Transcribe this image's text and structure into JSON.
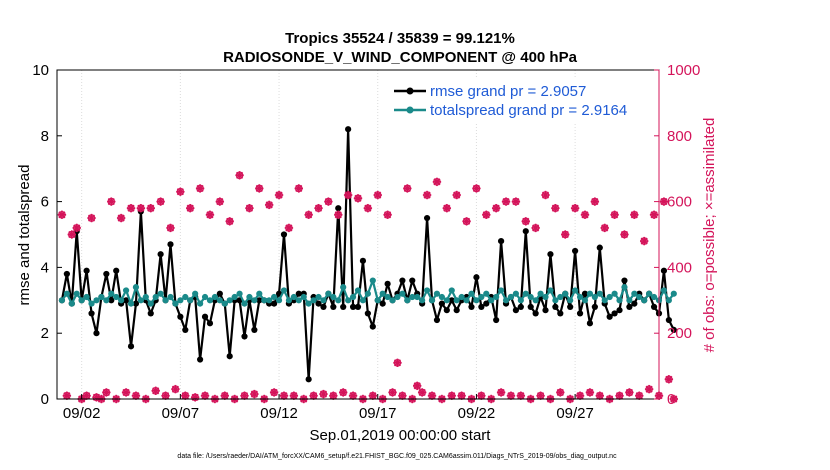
{
  "chart_data": {
    "type": "line",
    "title": "Tropics 35524 / 35839 = 99.121%",
    "subtitle": "RADIOSONDE_V_WIND_COMPONENT @ 400 hPa",
    "xlabel": "Sep.01,2019 00:00:00 start",
    "ylabel_left": "rmse and totalspread",
    "ylabel_right": "# of obs: o=possible; ×=assimilated",
    "ylim_left": [
      0,
      10
    ],
    "ylim_right": [
      0,
      1000
    ],
    "xlim": [
      0.75,
      31.25
    ],
    "yticks_left": [
      "0",
      "2",
      "4",
      "6",
      "8",
      "10"
    ],
    "yticks_right": [
      "0",
      "200",
      "400",
      "600",
      "800",
      "1000"
    ],
    "xticks": [
      {
        "day": 2,
        "label": "09/02"
      },
      {
        "day": 7,
        "label": "09/07"
      },
      {
        "day": 12,
        "label": "09/12"
      },
      {
        "day": 17,
        "label": "09/17"
      },
      {
        "day": 22,
        "label": "09/22"
      },
      {
        "day": 27,
        "label": "09/27"
      }
    ],
    "x_start_day": 1,
    "x_step_days": 0.25,
    "series": [
      {
        "name": "rmse grand pr = 2.9057",
        "axis": "left",
        "color": "#000000",
        "values": [
          3.0,
          3.8,
          2.9,
          5.1,
          3.0,
          3.9,
          2.6,
          2.0,
          3.1,
          3.8,
          3.0,
          3.9,
          2.9,
          3.0,
          1.6,
          2.9,
          5.7,
          3.0,
          2.6,
          3.0,
          4.4,
          3.0,
          4.7,
          2.9,
          2.5,
          2.1,
          3.0,
          3.1,
          1.2,
          2.5,
          2.3,
          3.0,
          3.2,
          2.9,
          1.3,
          3.0,
          3.0,
          1.9,
          3.0,
          2.1,
          3.0,
          3.0,
          2.9,
          2.9,
          3.2,
          5.0,
          2.9,
          3.0,
          3.2,
          3.2,
          0.6,
          3.1,
          2.9,
          2.8,
          3.2,
          2.8,
          5.8,
          2.8,
          8.2,
          2.8,
          2.8,
          4.2,
          2.6,
          2.2,
          3.0,
          2.9,
          3.5,
          3.0,
          3.2,
          3.6,
          3.0,
          3.6,
          3.2,
          2.9,
          5.5,
          3.0,
          2.4,
          2.9,
          2.7,
          3.0,
          2.7,
          3.0,
          3.1,
          2.8,
          3.7,
          2.8,
          2.9,
          3.1,
          2.4,
          4.8,
          2.9,
          3.1,
          2.7,
          2.8,
          5.1,
          2.8,
          2.6,
          3.1,
          2.7,
          4.4,
          2.8,
          2.6,
          3.2,
          2.8,
          4.5,
          2.6,
          3.2,
          2.3,
          2.8,
          4.6,
          2.9,
          2.5,
          2.6,
          2.7,
          3.6,
          2.8,
          2.9,
          3.2,
          3.0,
          3.2,
          2.8,
          2.6,
          3.9,
          2.4,
          2.1
        ],
        "markers": [
          2,
          3,
          5,
          10,
          16,
          22,
          28,
          33,
          44,
          50,
          58,
          63,
          74,
          89,
          100
        ]
      },
      {
        "name": "totalspread grand pr = 2.9164",
        "axis": "left",
        "color": "#1a8a8a",
        "values": [
          3.0,
          3.2,
          2.9,
          3.2,
          3.0,
          3.1,
          2.9,
          3.0,
          3.1,
          3.0,
          3.2,
          3.1,
          3.0,
          3.3,
          2.9,
          3.4,
          3.0,
          3.1,
          2.9,
          3.1,
          3.2,
          3.0,
          3.1,
          2.9,
          3.0,
          3.1,
          3.0,
          3.2,
          2.9,
          3.1,
          3.0,
          3.1,
          3.0,
          2.9,
          3.0,
          3.1,
          3.2,
          2.9,
          3.1,
          3.0,
          3.2,
          3.0,
          3.0,
          3.1,
          3.0,
          3.3,
          3.0,
          3.1,
          3.0,
          3.1,
          2.9,
          3.0,
          3.1,
          3.0,
          3.2,
          3.1,
          3.0,
          3.4,
          3.0,
          3.1,
          3.3,
          3.0,
          3.2,
          3.6,
          3.0,
          3.2,
          3.1,
          3.0,
          3.1,
          3.2,
          3.0,
          3.1,
          3.1,
          3.0,
          3.3,
          3.0,
          3.2,
          3.1,
          3.0,
          3.3,
          3.0,
          3.1,
          3.0,
          3.2,
          3.0,
          3.1,
          3.2,
          3.0,
          3.1,
          3.3,
          3.0,
          3.1,
          3.2,
          3.0,
          3.2,
          3.1,
          3.0,
          3.2,
          3.1,
          3.3,
          3.0,
          3.1,
          3.2,
          3.0,
          3.3,
          3.1,
          3.0,
          3.2,
          3.1,
          3.2,
          3.0,
          3.1,
          3.2,
          3.0,
          3.4,
          3.0,
          3.2,
          3.1,
          3.0,
          3.2,
          3.1,
          3.0,
          3.3,
          3.0,
          3.2
        ],
        "markers": [
          3,
          13,
          15,
          26,
          38,
          50,
          64,
          78,
          90,
          102,
          113
        ]
      },
      {
        "name": "obs possible / assimilated",
        "axis": "right",
        "color": "#d4145a",
        "values": [
          560,
          10,
          500,
          520,
          0,
          10,
          550,
          5,
          0,
          20,
          600,
          0,
          550,
          20,
          580,
          10,
          580,
          0,
          580,
          25,
          600,
          10,
          520,
          30,
          630,
          10,
          580,
          5,
          640,
          10,
          560,
          0,
          600,
          10,
          540,
          0,
          680,
          10,
          580,
          15,
          640,
          0,
          590,
          20,
          620,
          10,
          520,
          10,
          640,
          0,
          560,
          10,
          580,
          15,
          600,
          10,
          560,
          20,
          620,
          10,
          610,
          0,
          580,
          10,
          620,
          0,
          560,
          20,
          110,
          10,
          640,
          0,
          40,
          20,
          620,
          10,
          660,
          0,
          580,
          10,
          620,
          10,
          540,
          0,
          640,
          10,
          560,
          0,
          580,
          20,
          600,
          10,
          600,
          10,
          540,
          0,
          520,
          10,
          620,
          0,
          580,
          20,
          500,
          0,
          580,
          10,
          560,
          20,
          600,
          10,
          520,
          0,
          560,
          10,
          500,
          20,
          560,
          10,
          480,
          30,
          560,
          10,
          600,
          60,
          0
        ],
        "markers": [
          0,
          10,
          20,
          30,
          40,
          50,
          60,
          70,
          80,
          90,
          100,
          110,
          120
        ]
      }
    ]
  },
  "legend": {
    "rmse_label": "rmse grand pr = 2.9057",
    "spread_label": "totalspread grand pr = 2.9164"
  },
  "footnote": "data file: /Users/raeder/DAI/ATM_forcXX/CAM6_setup/f.e21.FHIST_BGC.f09_025.CAM6assim.011/Diags_NTrS_2019-09/obs_diag_output.nc",
  "colors": {
    "rmse": "#000000",
    "spread": "#1a8a8a",
    "obs": "#d4145a",
    "legend_text": "#1f5bd6",
    "grid": "#dcdcdc"
  }
}
